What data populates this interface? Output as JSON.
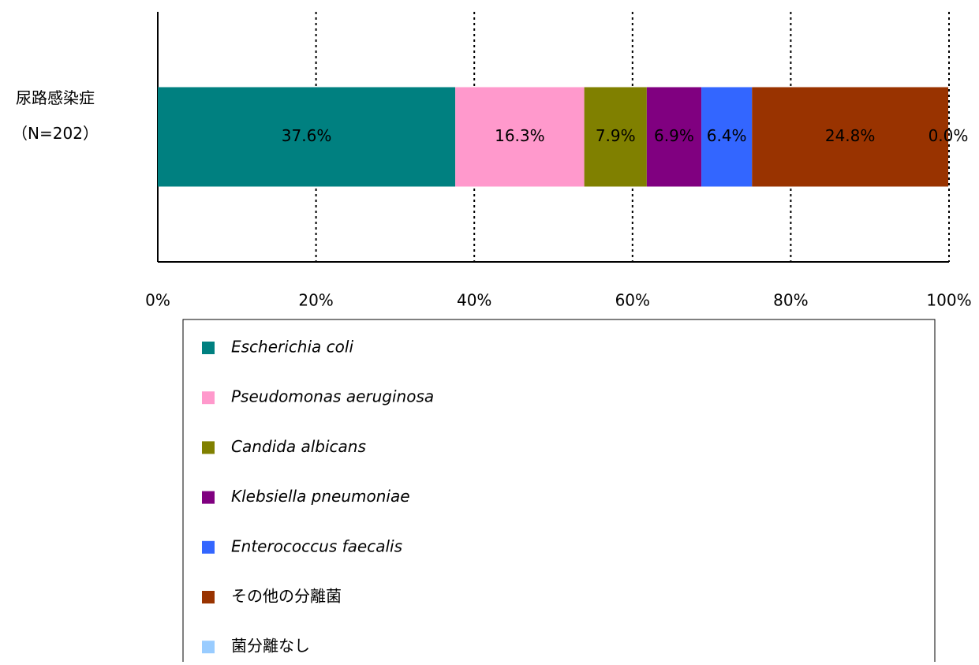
{
  "chart_data": {
    "type": "stacked-bar-horizontal",
    "categories": [
      [
        "尿路感染症",
        "（N=202）"
      ]
    ],
    "series": [
      {
        "name": "Escherichia coli",
        "color": "#008080",
        "label_color": "#ffffff",
        "legend_italic": true,
        "values": [
          37.6
        ],
        "value_labels": [
          "37.6%"
        ]
      },
      {
        "name": "Pseudomonas aeruginosa",
        "color": "#ff99cc",
        "label_color": "#000000",
        "legend_italic": true,
        "values": [
          16.3
        ],
        "value_labels": [
          "16.3%"
        ]
      },
      {
        "name": "Candida albicans",
        "color": "#808000",
        "label_color": "#000000",
        "legend_italic": true,
        "values": [
          7.9
        ],
        "value_labels": [
          "7.9%"
        ]
      },
      {
        "name": "Klebsiella pneumoniae",
        "color": "#800080",
        "label_color": "#ffffff",
        "legend_italic": true,
        "values": [
          6.9
        ],
        "value_labels": [
          "6.9%"
        ]
      },
      {
        "name": "Enterococcus faecalis",
        "color": "#3366ff",
        "label_color": "#ffffff",
        "legend_italic": true,
        "values": [
          6.4
        ],
        "value_labels": [
          "6.4%"
        ]
      },
      {
        "name": "その他の分離菌",
        "color": "#993300",
        "label_color": "#ffffff",
        "legend_italic": false,
        "values": [
          24.8
        ],
        "value_labels": [
          "24.8%"
        ]
      },
      {
        "name": "菌分離なし",
        "color": "#99ccff",
        "label_color": "#000000",
        "legend_italic": false,
        "values": [
          0.0
        ],
        "value_labels": [
          "0.0%"
        ]
      }
    ],
    "xlim": [
      0,
      100
    ],
    "xticks": [
      {
        "value": 0,
        "label": "0%"
      },
      {
        "value": 20,
        "label": "20%"
      },
      {
        "value": 40,
        "label": "40%"
      },
      {
        "value": 60,
        "label": "60%"
      },
      {
        "value": 80,
        "label": "80%"
      },
      {
        "value": 100,
        "label": "100%"
      }
    ],
    "grid": true,
    "legend": "bottom"
  }
}
